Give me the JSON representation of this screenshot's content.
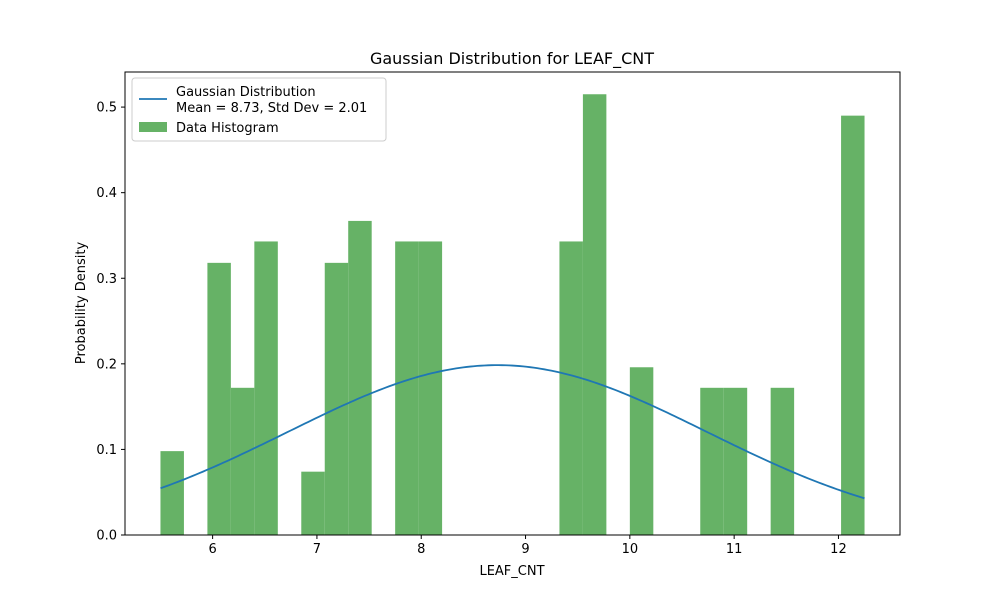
{
  "chart_data": {
    "type": "bar",
    "title": "Gaussian Distribution for LEAF_CNT",
    "xlabel": "LEAF_CNT",
    "ylabel": "Probability Density",
    "xlim": [
      5.16,
      12.59
    ],
    "ylim": [
      0,
      0.541
    ],
    "x_ticks": [
      6,
      7,
      8,
      9,
      10,
      11,
      12
    ],
    "y_ticks": [
      0.0,
      0.1,
      0.2,
      0.3,
      0.4,
      0.5
    ],
    "grid": false,
    "legend_position": "top-left",
    "histogram": {
      "name": "Data Histogram",
      "color": "#66b266",
      "bin_edges": [
        5.5,
        5.725,
        5.95,
        6.175,
        6.4,
        6.625,
        6.85,
        7.075,
        7.3,
        7.525,
        7.75,
        7.975,
        8.2,
        8.425,
        8.65,
        8.875,
        9.1,
        9.325,
        9.55,
        9.775,
        10.0,
        10.225,
        10.45,
        10.675,
        10.9,
        11.125,
        11.35,
        11.575,
        11.8,
        12.025,
        12.25
      ],
      "values": [
        0.098,
        0,
        0.318,
        0.172,
        0.343,
        0,
        0.074,
        0.318,
        0.367,
        0,
        0.343,
        0.343,
        0,
        0,
        0,
        0,
        0,
        0.343,
        0.515,
        0,
        0.196,
        0,
        0,
        0.172,
        0.172,
        0,
        0.172,
        0,
        0,
        0.49
      ]
    },
    "gaussian": {
      "name_line1": "Gaussian Distribution",
      "name_line2": "Mean = 8.73, Std Dev = 2.01",
      "color": "#1f77b4",
      "mean": 8.73,
      "std": 2.01,
      "x_range": [
        5.5,
        12.25
      ]
    }
  }
}
